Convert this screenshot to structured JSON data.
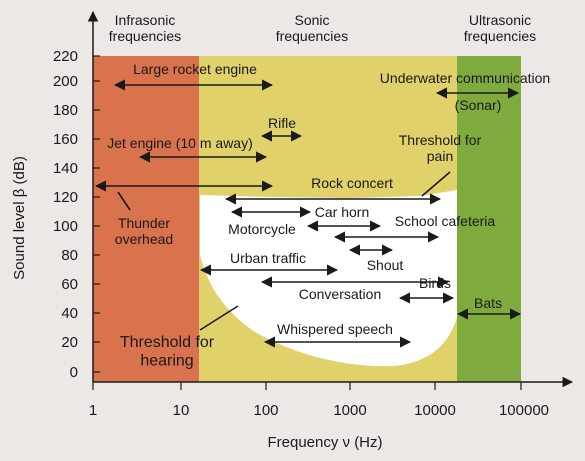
{
  "regions": [
    {
      "name": "Infrasonic\nfrequencies",
      "color": "#d9734e"
    },
    {
      "name": "Sonic\nfrequencies",
      "color": "#e0d16a"
    },
    {
      "name": "Ultrasonic\nfrequencies",
      "color": "#7faa3e"
    }
  ],
  "x_axis": {
    "label": "Frequency ν  (Hz)",
    "ticks": [
      "1",
      "10",
      "100",
      "1000",
      "10000",
      "100000"
    ]
  },
  "y_axis": {
    "label": "Sound level β (dB)",
    "ticks": [
      "0",
      "20",
      "40",
      "60",
      "80",
      "100",
      "120",
      "140",
      "160",
      "180",
      "200",
      "220"
    ]
  },
  "sources": [
    {
      "label": "Large rocket engine",
      "fmin": 2,
      "fmax": 60,
      "db": 195
    },
    {
      "label": "Underwater communication",
      "fmin": 20000,
      "fmax": 100000,
      "db": 193
    },
    {
      "label": "(Sonar)"
    },
    {
      "label": "Rifle",
      "fmin": 120,
      "fmax": 300,
      "db": 165
    },
    {
      "label": "Jet engine (10 m away)",
      "fmin": 5,
      "fmax": 80,
      "db": 152
    },
    {
      "label": "Threshold for\npain"
    },
    {
      "label": "Rock concert",
      "fmin": 1,
      "fmax": 100,
      "db": 128
    },
    {
      "label": "Car horn",
      "fmin": 30,
      "fmax": 450,
      "db": 112
    },
    {
      "label": "Motorcycle",
      "fmin": 400,
      "fmax": 3500,
      "db": 105
    },
    {
      "label": "School cafeteria",
      "fmin": 700,
      "fmax": 8000,
      "db": 93
    },
    {
      "label": "Thunder\noverhead"
    },
    {
      "label": "Shout",
      "fmin": 900,
      "fmax": 3500,
      "db": 85
    },
    {
      "label": "Urban traffic",
      "fmin": 10,
      "fmax": 1000,
      "db": 72
    },
    {
      "label": "Birds",
      "fmin": 100,
      "fmax": 6000,
      "db": 62
    },
    {
      "label": "Conversation",
      "fmin": 1500,
      "fmax": 9000,
      "db": 52
    },
    {
      "label": "Bats",
      "fmin": 25000,
      "fmax": 100000,
      "db": 38
    },
    {
      "label": "Whispered speech",
      "fmin": 100,
      "fmax": 5000,
      "db": 20
    },
    {
      "label": "Threshold for\nhearing"
    }
  ]
}
